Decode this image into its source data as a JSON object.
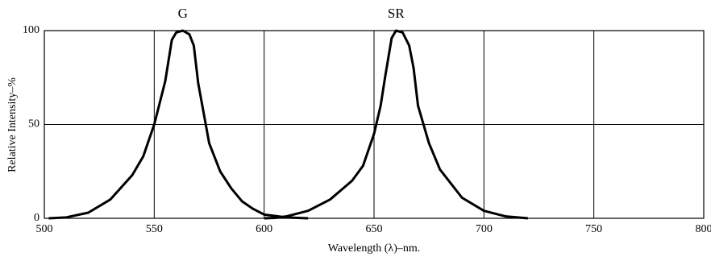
{
  "chart_data": {
    "type": "line",
    "xlabel": "Wavelength (λ)–nm.",
    "ylabel": "Relative Intensity–%",
    "xlim": [
      500,
      800
    ],
    "xticks": [
      500,
      550,
      600,
      650,
      700,
      750,
      800
    ],
    "ylim": [
      0,
      100
    ],
    "yticks": [
      0,
      50,
      100
    ],
    "grid": true,
    "series": [
      {
        "name": "G",
        "color": "#000000",
        "x": [
          502,
          510,
          520,
          530,
          540,
          545,
          550,
          555,
          558,
          560,
          563,
          566,
          568,
          570,
          575,
          580,
          585,
          590,
          595,
          600,
          610,
          620
        ],
        "values": [
          0,
          0.5,
          3,
          10,
          23,
          33,
          50,
          73,
          95,
          99,
          100,
          98,
          92,
          72,
          40,
          25,
          16,
          9,
          5,
          2,
          0.5,
          0
        ]
      },
      {
        "name": "SR",
        "color": "#000000",
        "x": [
          600,
          605,
          610,
          620,
          630,
          640,
          645,
          650,
          653,
          655,
          658,
          660,
          663,
          666,
          668,
          670,
          675,
          680,
          690,
          700,
          710,
          720
        ],
        "values": [
          0,
          0.2,
          1,
          4,
          10,
          20,
          28,
          45,
          60,
          75,
          96,
          100,
          99,
          92,
          80,
          60,
          40,
          26,
          11,
          4,
          1,
          0
        ]
      }
    ]
  }
}
